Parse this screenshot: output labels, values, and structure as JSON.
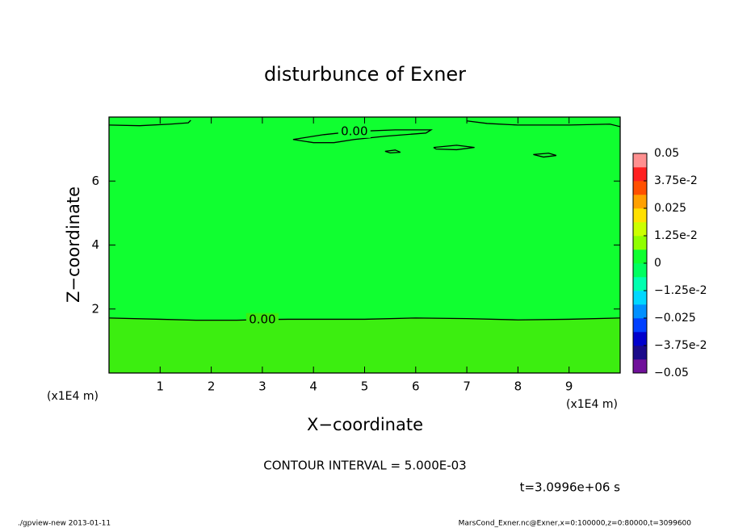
{
  "chart_data": {
    "type": "contour",
    "title": "disturbunce of Exner",
    "x_label": "X−coordinate",
    "y_label": "Z−coordinate",
    "x_unit": "(x1E4 m)",
    "y_unit": "(x1E4 m)",
    "xlim": [
      0,
      10
    ],
    "ylim": [
      0,
      8
    ],
    "xticks": [
      1,
      2,
      3,
      4,
      5,
      6,
      7,
      8,
      9
    ],
    "yticks": [
      2,
      4,
      6
    ],
    "fill_colors": [
      "#3cee10",
      "#10ff30"
    ],
    "contour_color": "#000000",
    "contours": [
      {
        "label": "0.00",
        "x": [
          0,
          1,
          1.7,
          2.5,
          3,
          3.5,
          4,
          5,
          6,
          7,
          8,
          9,
          10
        ],
        "y": [
          1.72,
          1.68,
          1.65,
          1.65,
          1.67,
          1.68,
          1.68,
          1.68,
          1.72,
          1.7,
          1.66,
          1.68,
          1.72
        ]
      },
      {
        "label": "0.00",
        "x": [
          3.6,
          4.2,
          4.8,
          5.6,
          6.3,
          6.2,
          5.4,
          4.8,
          4.4,
          4.0,
          3.6
        ],
        "y": [
          7.3,
          7.45,
          7.55,
          7.6,
          7.6,
          7.5,
          7.4,
          7.3,
          7.2,
          7.2,
          7.3
        ]
      },
      {
        "x": [
          0,
          0.6,
          1.2,
          1.55,
          1.6
        ],
        "y": [
          7.75,
          7.73,
          7.78,
          7.82,
          7.9
        ]
      },
      {
        "x": [
          7.0,
          7.4,
          8.0,
          9.0,
          9.8,
          10
        ],
        "y": [
          7.88,
          7.8,
          7.75,
          7.75,
          7.78,
          7.7
        ]
      },
      {
        "x": [
          5.4,
          5.6,
          5.7,
          5.5,
          5.4
        ],
        "y": [
          6.93,
          6.97,
          6.9,
          6.88,
          6.93
        ]
      },
      {
        "x": [
          6.35,
          6.8,
          7.15,
          6.8,
          6.4,
          6.35
        ],
        "y": [
          7.05,
          7.12,
          7.05,
          6.98,
          7.0,
          7.05
        ]
      },
      {
        "x": [
          8.3,
          8.6,
          8.75,
          8.5,
          8.3
        ],
        "y": [
          6.83,
          6.87,
          6.8,
          6.75,
          6.83
        ]
      }
    ],
    "clim": [
      -0.05,
      0.05
    ],
    "colorbar_colors": [
      "#70109a",
      "#1a0a8a",
      "#0000cc",
      "#0040ff",
      "#0090ff",
      "#00d8ff",
      "#00ffb0",
      "#00ff60",
      "#10ff30",
      "#90ff00",
      "#ccff00",
      "#ffe000",
      "#ffa000",
      "#ff5000",
      "#ff2020",
      "#ff9090"
    ],
    "colorbar_ticks": [
      0.05,
      {
        "value": 0.0375,
        "label": "3.75e-2"
      },
      0.025,
      {
        "value": 0.0125,
        "label": "1.25e-2"
      },
      0,
      {
        "value": -0.0125,
        "label": "−1.25e-2"
      },
      {
        "value": -0.025,
        "label": "−0.025"
      },
      {
        "value": -0.0375,
        "label": "−3.75e-2"
      },
      {
        "value": -0.05,
        "label": "−0.05"
      }
    ],
    "annotations": [
      "CONTOUR INTERVAL = 5.000E-03",
      "t=3.0996e+06 s",
      "./gpview-new  2013-01-11",
      "MarsCond_Exner.nc@Exner,x=0:100000,z=0:80000,t=3099600"
    ]
  }
}
